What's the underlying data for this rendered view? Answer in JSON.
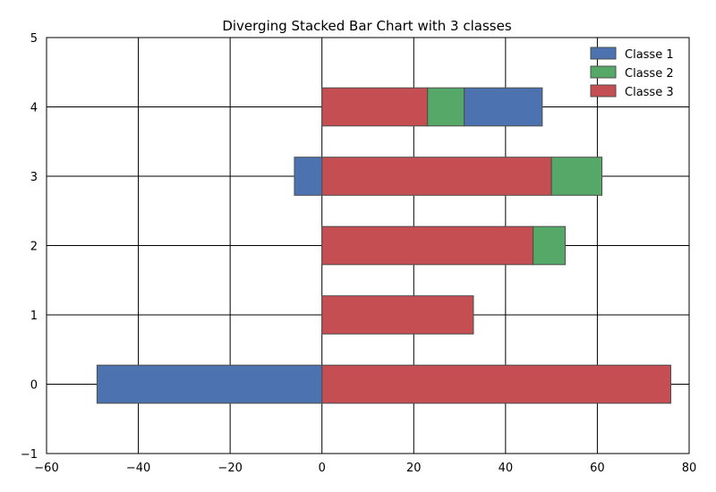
{
  "chart_data": {
    "type": "bar",
    "orientation": "horizontal",
    "stacking": "diverging",
    "title": "Diverging Stacked Bar Chart with 3 classes",
    "xlabel": "",
    "ylabel": "",
    "xlim": [
      -60,
      80
    ],
    "ylim": [
      -1,
      5
    ],
    "xticks": [
      -60,
      -40,
      -20,
      0,
      20,
      40,
      60,
      80
    ],
    "yticks": [
      -1,
      0,
      1,
      2,
      3,
      4,
      5
    ],
    "grid": true,
    "legend_position": "top-right",
    "categories": [
      0,
      1,
      2,
      3,
      4
    ],
    "series": [
      {
        "name": "Classe 1",
        "color": "#4c72b0",
        "values": [
          -49,
          0,
          0,
          -6,
          17
        ]
      },
      {
        "name": "Classe 2",
        "color": "#55a868",
        "values": [
          0,
          0,
          7,
          11,
          8
        ]
      },
      {
        "name": "Classe 3",
        "color": "#c44e52",
        "values": [
          76,
          33,
          46,
          50,
          23
        ]
      }
    ],
    "stack_order_positive": [
      "Classe 3",
      "Classe 2",
      "Classe 1"
    ]
  }
}
